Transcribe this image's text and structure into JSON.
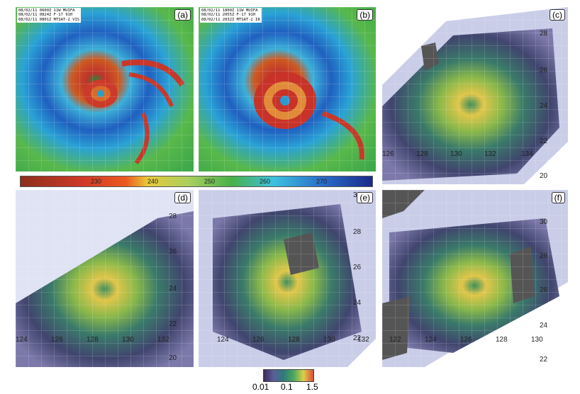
{
  "panels": {
    "a": {
      "label": "(a)",
      "header": [
        "08/02/11 0600Z 11W MUIFA",
        "08/02/11 0824Z F-17 91H",
        "08/02/11 0801Z MTSAT-2 VIS"
      ]
    },
    "b": {
      "label": "(b)",
      "header": [
        "08/02/11 1800Z 11W MUIFA",
        "08/02/11 2055Z F-17 91H",
        "08/02/11 2032Z MTSAT-2 IR"
      ]
    },
    "c": {
      "label": "(c)",
      "lon_ticks": [
        "126",
        "128",
        "130",
        "132",
        "134"
      ],
      "lat_ticks": [
        "28",
        "26",
        "24",
        "22",
        "20"
      ]
    },
    "d": {
      "label": "(d)",
      "lon_ticks": [
        "124",
        "126",
        "128",
        "130",
        "132"
      ],
      "lat_ticks": [
        "28",
        "26",
        "24",
        "22",
        "20"
      ]
    },
    "e": {
      "label": "(e)",
      "lon_ticks": [
        "124",
        "126",
        "128",
        "130",
        "132"
      ],
      "lat_ticks": [
        "30",
        "28",
        "26",
        "24",
        "22"
      ]
    },
    "f": {
      "label": "(f)",
      "lon_ticks": [
        "122",
        "124",
        "126",
        "128",
        "130"
      ],
      "lat_ticks": [
        "30",
        "28",
        "26",
        "24",
        "22"
      ]
    }
  },
  "tb_colorbar": {
    "labels": [
      "230",
      "240",
      "250",
      "260",
      "270"
    ]
  },
  "rain_colorbar": {
    "labels": [
      "0.01",
      "0.1",
      "1.5"
    ]
  }
}
